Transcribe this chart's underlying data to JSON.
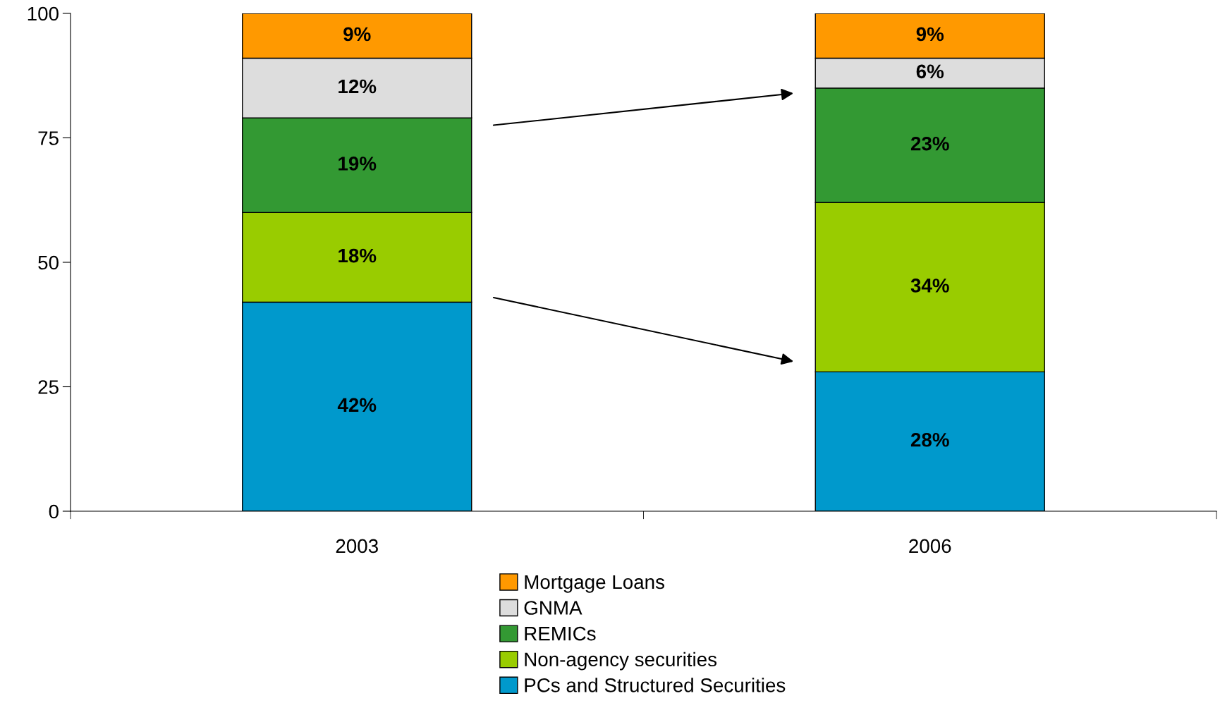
{
  "chart_data": {
    "type": "bar",
    "stacked": true,
    "categories": [
      "2003",
      "2006"
    ],
    "series": [
      {
        "name": "PCs and Structured Securities",
        "color": "#0099cc",
        "values": [
          42,
          28
        ],
        "value_labels": [
          "42%",
          "28%"
        ]
      },
      {
        "name": "Non-agency securities",
        "color": "#99cc00",
        "values": [
          18,
          34
        ],
        "value_labels": [
          "18%",
          "34%"
        ]
      },
      {
        "name": "REMICs",
        "color": "#339933",
        "values": [
          19,
          23
        ],
        "value_labels": [
          "19%",
          "23%"
        ]
      },
      {
        "name": "GNMA",
        "color": "#dddddd",
        "values": [
          12,
          6
        ],
        "value_labels": [
          "12%",
          "6%"
        ]
      },
      {
        "name": "Mortgage Loans",
        "color": "#ff9900",
        "values": [
          9,
          9
        ],
        "value_labels": [
          "9%",
          "9%"
        ]
      }
    ],
    "ylim": [
      0,
      100
    ],
    "yticks": [
      0,
      25,
      50,
      75,
      100
    ],
    "grid": false,
    "legend": "bottom"
  }
}
